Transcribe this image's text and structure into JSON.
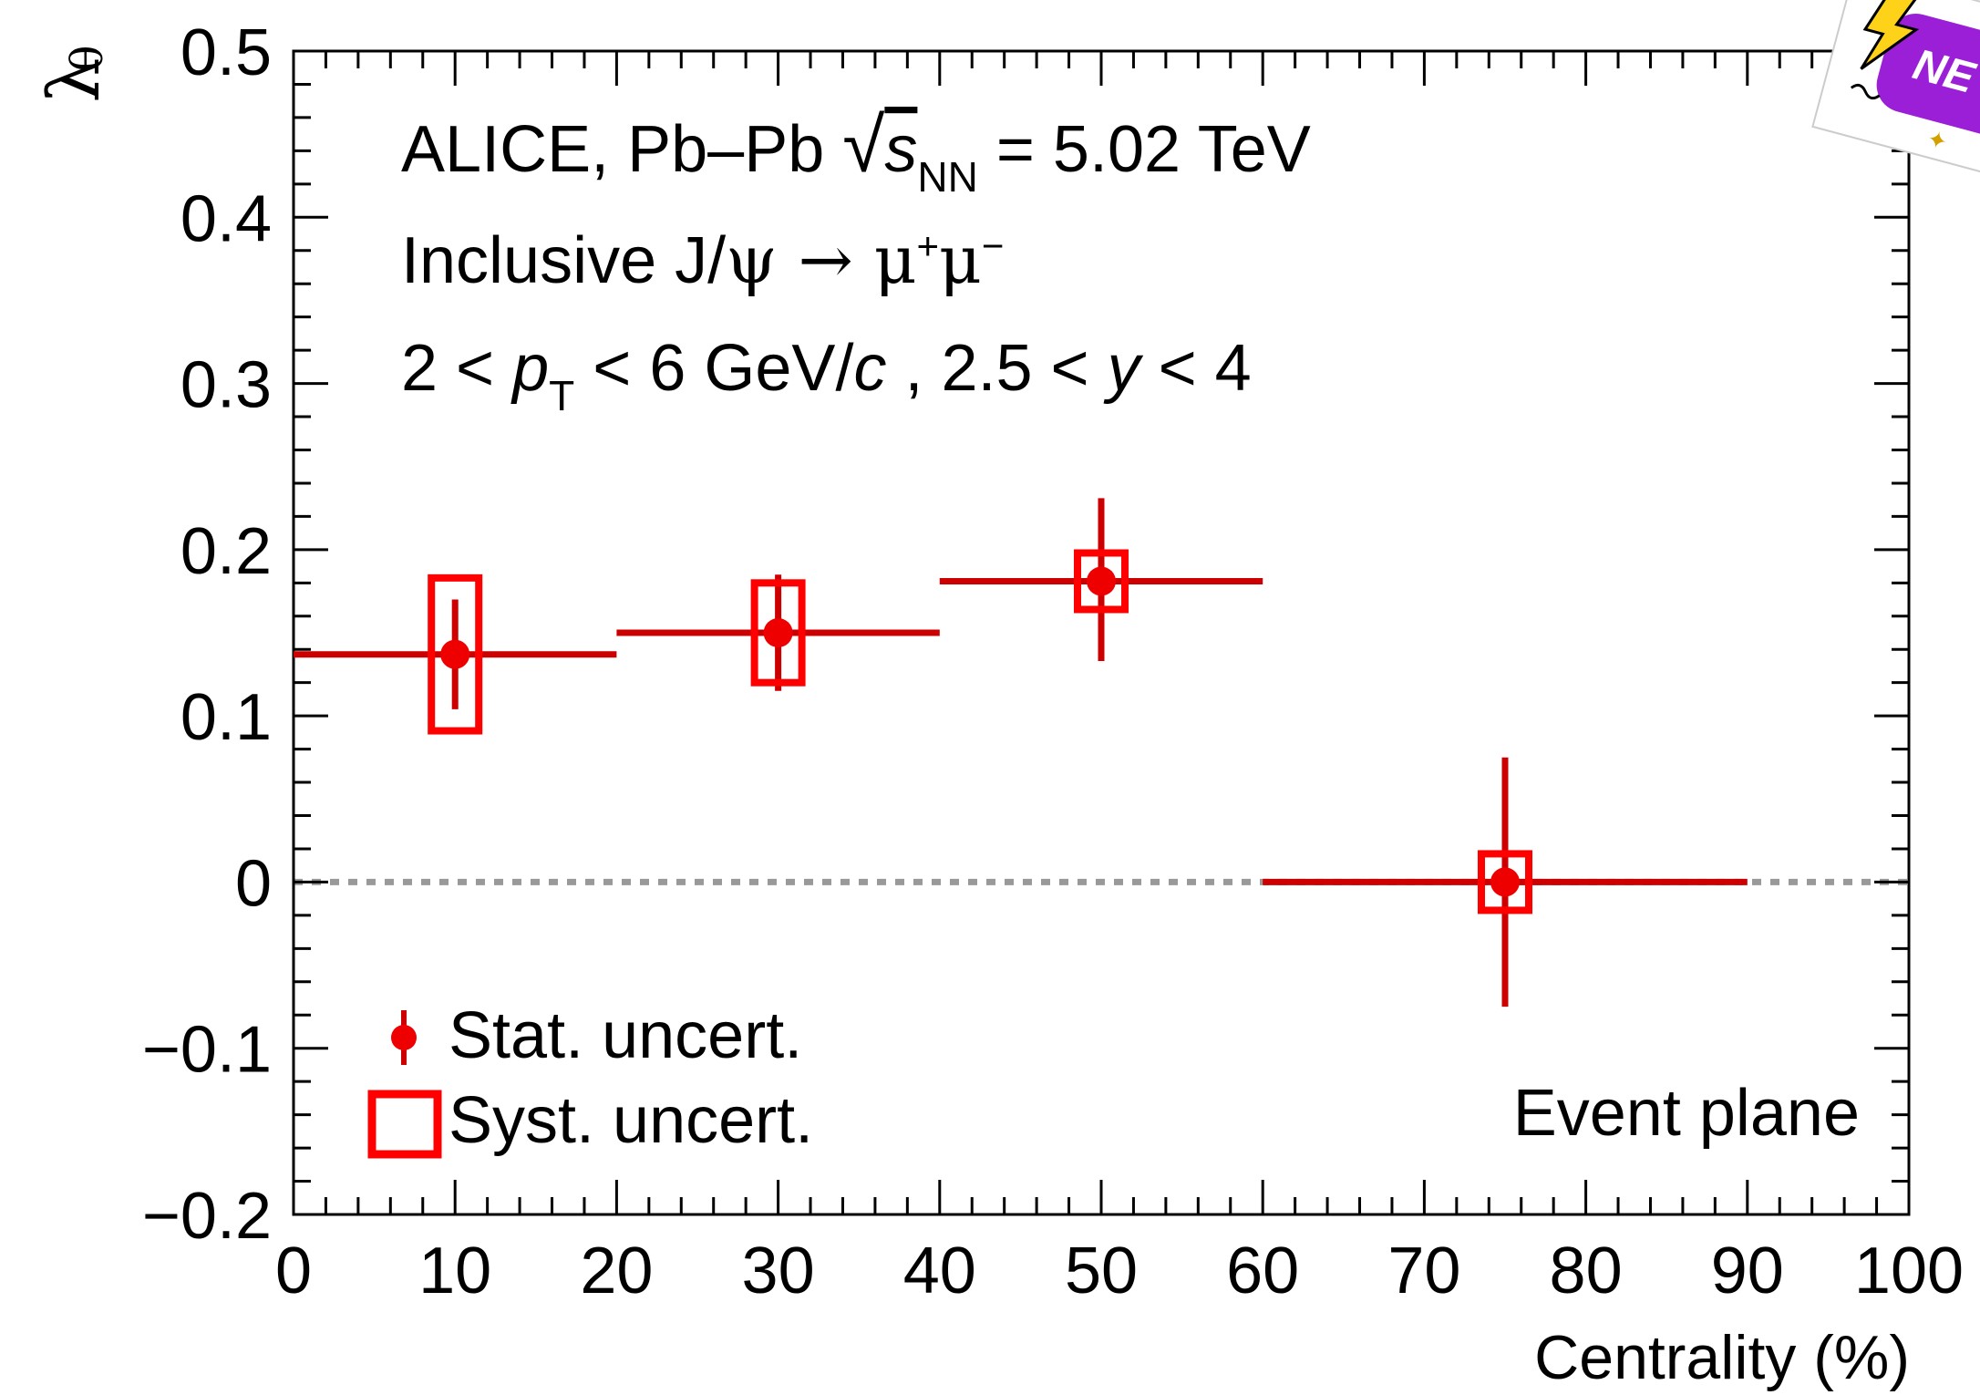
{
  "chart_data": {
    "type": "scatter",
    "xlabel": "Centrality (%)",
    "ylabel": "λ",
    "ylabel_sub": "θ",
    "xlim": [
      0,
      100
    ],
    "ylim": [
      -0.2,
      0.5
    ],
    "x_ticks": [
      "0",
      "10",
      "20",
      "30",
      "40",
      "50",
      "60",
      "70",
      "80",
      "90",
      "100"
    ],
    "y_ticks": [
      "−0.2",
      "−0.1",
      "0",
      "0.1",
      "0.2",
      "0.3",
      "0.4",
      "0.5"
    ],
    "annotations": {
      "line1": {
        "a": "ALICE, Pb–Pb ",
        "s": "s",
        "nn": "NN",
        "b": " = 5.02 TeV"
      },
      "line2": {
        "a": "Inclusive J/",
        "psi": "ψ",
        "arrow": " → ",
        "mu1": "μ",
        "plus": "+",
        "mu2": "μ",
        "minus": "−"
      },
      "line3": {
        "a": "2 < ",
        "p": "p",
        "T": "T",
        "b": " < 6 GeV/",
        "c": "c",
        "d": " , 2.5 < ",
        "y": "y",
        "e": " < 4"
      },
      "method": "Event plane"
    },
    "legend": {
      "stat": "Stat. uncert.",
      "syst": "Syst. uncert.",
      "position": "bottom-left"
    },
    "reference_line": {
      "y": 0,
      "style": "dotted",
      "color": "#999999"
    },
    "colors": {
      "data": "#cc0000",
      "marker": "#ee0000",
      "syst_box": "#ff0000"
    },
    "points": [
      {
        "x": 10,
        "x_low": 0,
        "x_high": 20,
        "y": 0.137,
        "stat_low": 0.104,
        "stat_high": 0.17,
        "syst_low": 0.091,
        "syst_high": 0.183
      },
      {
        "x": 30,
        "x_low": 20,
        "x_high": 40,
        "y": 0.15,
        "stat_low": 0.115,
        "stat_high": 0.185,
        "syst_low": 0.12,
        "syst_high": 0.18
      },
      {
        "x": 50,
        "x_low": 40,
        "x_high": 60,
        "y": 0.181,
        "stat_low": 0.133,
        "stat_high": 0.231,
        "syst_low": 0.164,
        "syst_high": 0.198
      },
      {
        "x": 75,
        "x_low": 60,
        "x_high": 90,
        "y": 0.0,
        "stat_low": -0.075,
        "stat_high": 0.075,
        "syst_low": -0.017,
        "syst_high": 0.017
      }
    ]
  }
}
